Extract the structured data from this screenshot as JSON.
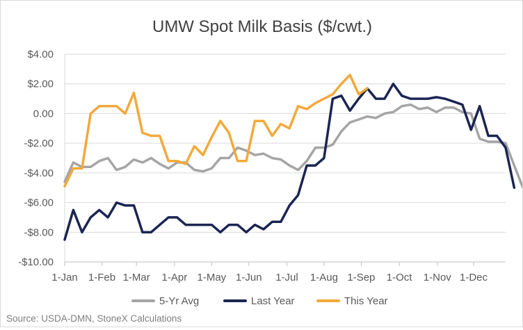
{
  "chart_data": {
    "type": "line",
    "title": "UMW Spot Milk Basis ($/cwt.)",
    "source": "Source: USDA-DMN, StoneX Calculations",
    "xlabel": "",
    "ylabel": "",
    "ylim": [
      -10,
      4
    ],
    "y_ticks": [
      4,
      2,
      0,
      -2,
      -4,
      -6,
      -8,
      -10
    ],
    "y_tick_labels": [
      "$4.00",
      "$2.00",
      "0.00",
      "-$2.00",
      "-$4.00",
      "-$6.00",
      "-$8.00",
      "-$10.00"
    ],
    "x_tick_labels": [
      "1-Jan",
      "1-Feb",
      "1-Mar",
      "1-Apr",
      "1-May",
      "1-Jun",
      "1-Jul",
      "1-Aug",
      "1-Sep",
      "1-Oct",
      "1-Nov",
      "1-Dec"
    ],
    "x_tick_weeks": [
      0,
      4.3,
      8.3,
      12.7,
      17,
      21.3,
      25.7,
      30,
      34.3,
      38.7,
      43.1,
      47.3
    ],
    "x_range_weeks": [
      0,
      51
    ],
    "grid": true,
    "legend_position": "bottom",
    "series": [
      {
        "name": "5-Yr Avg",
        "color": "#a5a5a5",
        "values": [
          -4.6,
          -3.3,
          -3.6,
          -3.6,
          -3.2,
          -3.0,
          -3.8,
          -3.6,
          -3.1,
          -3.3,
          -3.0,
          -3.4,
          -3.7,
          -3.3,
          -3.3,
          -3.8,
          -3.9,
          -3.7,
          -3.0,
          -3.0,
          -2.3,
          -2.5,
          -2.8,
          -2.7,
          -3.0,
          -3.1,
          -3.5,
          -3.8,
          -3.2,
          -2.3,
          -2.3,
          -2.1,
          -1.2,
          -0.6,
          -0.4,
          -0.2,
          -0.3,
          0.0,
          0.1,
          0.5,
          0.6,
          0.3,
          0.4,
          0.1,
          0.4,
          0.4,
          0.1,
          0.0,
          -1.7,
          -1.9,
          -1.9,
          -2.0,
          -3.5,
          -5.0
        ]
      },
      {
        "name": "Last Year",
        "color": "#1b2553",
        "values": [
          -8.5,
          -6.5,
          -8.0,
          -7.0,
          -6.5,
          -7.0,
          -6.0,
          -6.2,
          -6.2,
          -8.0,
          -8.0,
          -7.5,
          -7.0,
          -7.0,
          -7.5,
          -7.5,
          -7.5,
          -7.5,
          -8.0,
          -7.5,
          -7.5,
          -8.0,
          -7.5,
          -7.8,
          -7.3,
          -7.3,
          -6.2,
          -5.5,
          -3.5,
          -3.5,
          -3.0,
          1.0,
          1.2,
          0.2,
          1.0,
          1.7,
          1.0,
          1.0,
          2.0,
          1.2,
          1.0,
          1.0,
          1.0,
          1.1,
          1.0,
          0.8,
          0.6,
          -1.1,
          0.5,
          -1.5,
          -1.5,
          -2.3,
          -5.0
        ]
      },
      {
        "name": "This Year",
        "color": "#f2a93b",
        "values": [
          -4.9,
          -3.7,
          -3.7,
          0.0,
          0.5,
          0.5,
          0.5,
          0.0,
          1.4,
          -1.3,
          -1.5,
          -1.5,
          -3.2,
          -3.2,
          -3.4,
          -2.2,
          -2.8,
          -1.6,
          -0.5,
          -1.3,
          -3.2,
          -3.2,
          -0.5,
          -0.5,
          -1.5,
          -0.7,
          -1.0,
          0.5,
          0.3,
          0.7,
          1.0,
          1.3,
          2.0,
          2.6,
          1.3,
          1.7
        ]
      }
    ]
  }
}
